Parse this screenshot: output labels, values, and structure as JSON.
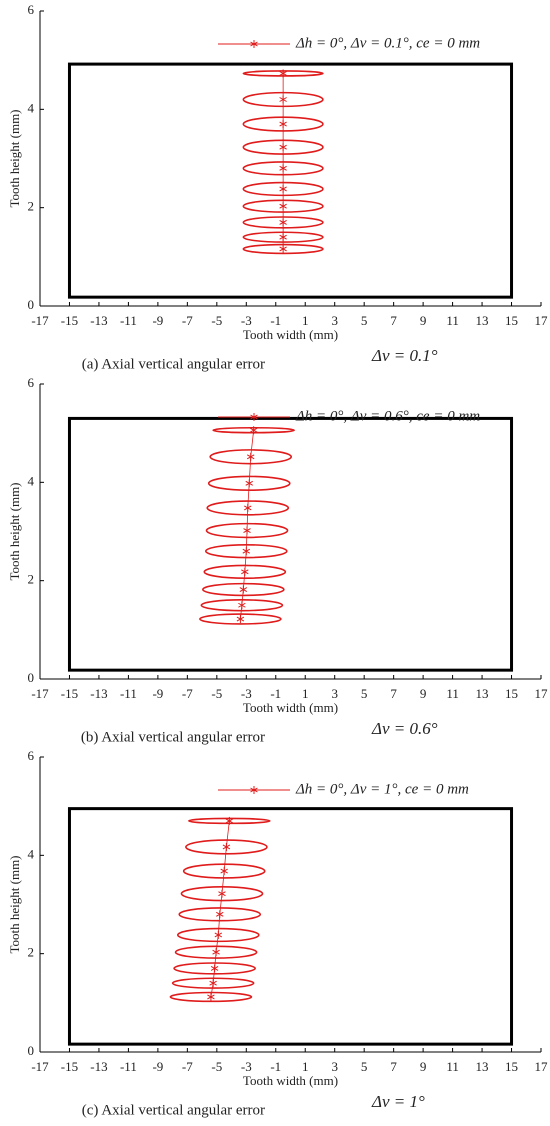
{
  "chart_data": [
    {
      "type": "ellipse",
      "caption": "(a) Axial vertical angular error",
      "caption_math": "Δv = 0.1°",
      "xlabel": "Tooth width (mm)",
      "ylabel": "Tooth height (mm)",
      "xlim": [
        -17,
        17
      ],
      "xticks": [
        -17,
        -15,
        -13,
        -11,
        -9,
        -7,
        -5,
        -3,
        -1,
        1,
        3,
        5,
        7,
        9,
        11,
        13,
        15,
        17
      ],
      "ylim": [
        0,
        6
      ],
      "yticks": [
        0,
        2,
        4,
        6
      ],
      "boundary": {
        "x": [
          -15,
          15
        ],
        "y": [
          0.18,
          4.92
        ],
        "color": "#000000"
      },
      "legend": "top-right",
      "x": [
        -0.5,
        -0.5,
        -0.5,
        -0.5,
        -0.5,
        -0.5,
        -0.5,
        -0.5,
        -0.5,
        -0.5
      ],
      "series": [
        {
          "name": "Δh = 0°, Δv = 0.1°, ce = 0 mm",
          "color": "#e01b1b",
          "values": [
            4.73,
            4.2,
            3.7,
            3.23,
            2.8,
            2.38,
            2.03,
            1.7,
            1.4,
            1.16
          ],
          "rx": [
            2.7,
            2.7,
            2.7,
            2.7,
            2.7,
            2.7,
            2.7,
            2.7,
            2.7,
            2.7
          ],
          "ry": [
            0.05,
            0.14,
            0.14,
            0.14,
            0.13,
            0.13,
            0.12,
            0.11,
            0.1,
            0.09
          ]
        }
      ]
    },
    {
      "type": "ellipse",
      "caption": "(b) Axial vertical angular error",
      "caption_math": "Δv = 0.6°",
      "xlabel": "Tooth width (mm)",
      "ylabel": "Tooth height (mm)",
      "xlim": [
        -17,
        17
      ],
      "xticks": [
        -17,
        -15,
        -13,
        -11,
        -9,
        -7,
        -5,
        -3,
        -1,
        1,
        3,
        5,
        7,
        9,
        11,
        13,
        15,
        17
      ],
      "ylim": [
        0,
        6
      ],
      "yticks": [
        0,
        2,
        4,
        6
      ],
      "boundary": {
        "x": [
          -15,
          15
        ],
        "y": [
          0.18,
          5.3
        ],
        "color": "#000000"
      },
      "legend": "top-right",
      "x": [
        -2.5,
        -2.7,
        -2.8,
        -2.9,
        -2.95,
        -3.0,
        -3.1,
        -3.2,
        -3.3,
        -3.4
      ],
      "series": [
        {
          "name": "Δh = 0°, Δv = 0.6°, ce = 0 mm",
          "color": "#e01b1b",
          "values": [
            5.06,
            4.52,
            3.98,
            3.48,
            3.02,
            2.6,
            2.18,
            1.82,
            1.5,
            1.22
          ],
          "rx": [
            2.75,
            2.75,
            2.75,
            2.75,
            2.75,
            2.75,
            2.75,
            2.75,
            2.75,
            2.75
          ],
          "ry": [
            0.05,
            0.14,
            0.14,
            0.14,
            0.14,
            0.13,
            0.13,
            0.12,
            0.11,
            0.1
          ]
        }
      ]
    },
    {
      "type": "ellipse",
      "caption": "(c) Axial vertical angular error",
      "caption_math": "Δv = 1°",
      "xlabel": "Tooth width (mm)",
      "ylabel": "Tooth height (mm)",
      "xlim": [
        -17,
        17
      ],
      "xticks": [
        -17,
        -15,
        -13,
        -11,
        -9,
        -7,
        -5,
        -3,
        -1,
        1,
        3,
        5,
        7,
        9,
        11,
        13,
        15,
        17
      ],
      "ylim": [
        0,
        6
      ],
      "yticks": [
        0,
        2,
        4,
        6
      ],
      "boundary": {
        "x": [
          -15,
          15
        ],
        "y": [
          0.16,
          4.95
        ],
        "color": "#000000"
      },
      "legend": "top-right",
      "x": [
        -4.15,
        -4.35,
        -4.5,
        -4.65,
        -4.8,
        -4.9,
        -5.05,
        -5.15,
        -5.25,
        -5.4
      ],
      "series": [
        {
          "name": "Δh = 0°, Δv = 1°, ce = 0 mm",
          "color": "#e01b1b",
          "values": [
            4.7,
            4.17,
            3.68,
            3.22,
            2.8,
            2.38,
            2.03,
            1.7,
            1.4,
            1.12
          ],
          "rx": [
            2.75,
            2.75,
            2.75,
            2.75,
            2.75,
            2.75,
            2.75,
            2.75,
            2.75,
            2.75
          ],
          "ry": [
            0.05,
            0.14,
            0.14,
            0.14,
            0.13,
            0.13,
            0.12,
            0.11,
            0.1,
            0.09
          ]
        }
      ]
    }
  ]
}
